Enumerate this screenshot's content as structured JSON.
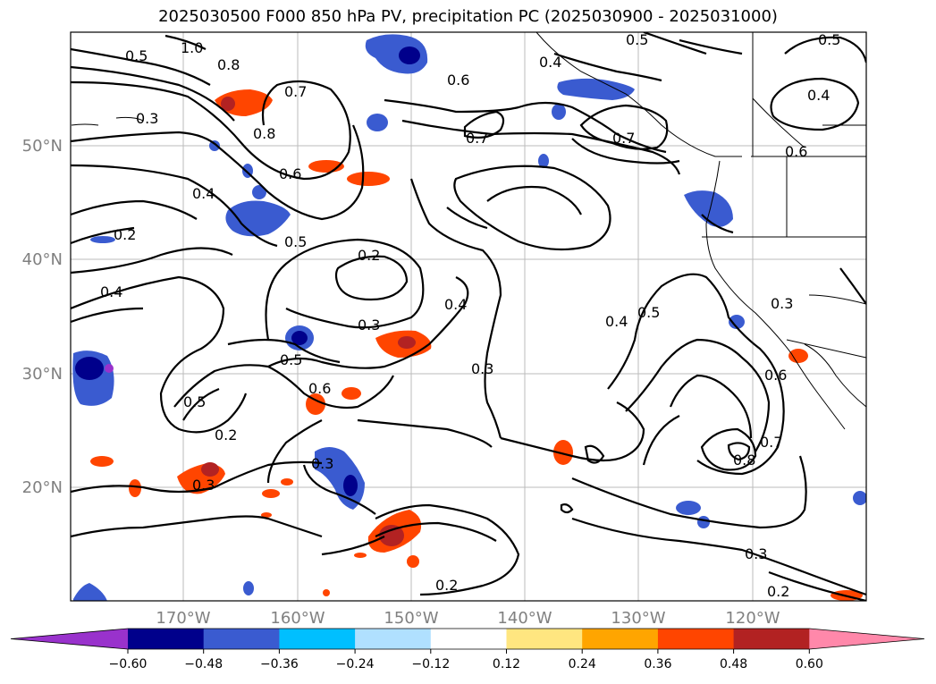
{
  "title": "2025030500 F000 850 hPa PV, precipitation PC (2025030900 - 2025031000)",
  "lat_labels": [
    "50°N",
    "40°N",
    "30°N",
    "20°N"
  ],
  "lon_labels": [
    "170°W",
    "160°W",
    "150°W",
    "140°W",
    "130°W",
    "120°W"
  ],
  "contour_labels": [
    {
      "text": "1.0"
    },
    {
      "text": "0.8"
    },
    {
      "text": "0.7"
    },
    {
      "text": "0.5"
    },
    {
      "text": "0.3"
    },
    {
      "text": "0.8"
    },
    {
      "text": "0.6"
    },
    {
      "text": "0.4"
    },
    {
      "text": "0.2"
    },
    {
      "text": "0.5"
    },
    {
      "text": "0.4"
    },
    {
      "text": "0.2"
    },
    {
      "text": "0.3"
    },
    {
      "text": "0.4"
    },
    {
      "text": "0.3"
    },
    {
      "text": "0.5"
    },
    {
      "text": "0.6"
    },
    {
      "text": "0.5"
    },
    {
      "text": "0.2"
    },
    {
      "text": "0.3"
    },
    {
      "text": "0.3"
    },
    {
      "text": "0.6"
    },
    {
      "text": "0.7"
    },
    {
      "text": "0.4"
    },
    {
      "text": "0.7"
    },
    {
      "text": "0.5"
    },
    {
      "text": "0.4"
    },
    {
      "text": "0.5"
    },
    {
      "text": "0.4"
    },
    {
      "text": "0.5"
    },
    {
      "text": "0.3"
    },
    {
      "text": "0.6"
    },
    {
      "text": "0.8"
    },
    {
      "text": "0.7"
    },
    {
      "text": "0.3"
    },
    {
      "text": "0.2"
    },
    {
      "text": "0.2"
    },
    {
      "text": "0.6"
    }
  ],
  "colorbar": {
    "ticks": [
      "−0.60",
      "−0.48",
      "−0.36",
      "−0.24",
      "−0.12",
      "0.12",
      "0.24",
      "0.36",
      "0.48",
      "0.60"
    ],
    "colors": [
      "#9932cc",
      "#00008b",
      "#3a5bd0",
      "#00bfff",
      "#b0e0ff",
      "#ffffff",
      "#ffe680",
      "#ffa500",
      "#ff4500",
      "#b22222",
      "#ff88aa"
    ]
  }
}
